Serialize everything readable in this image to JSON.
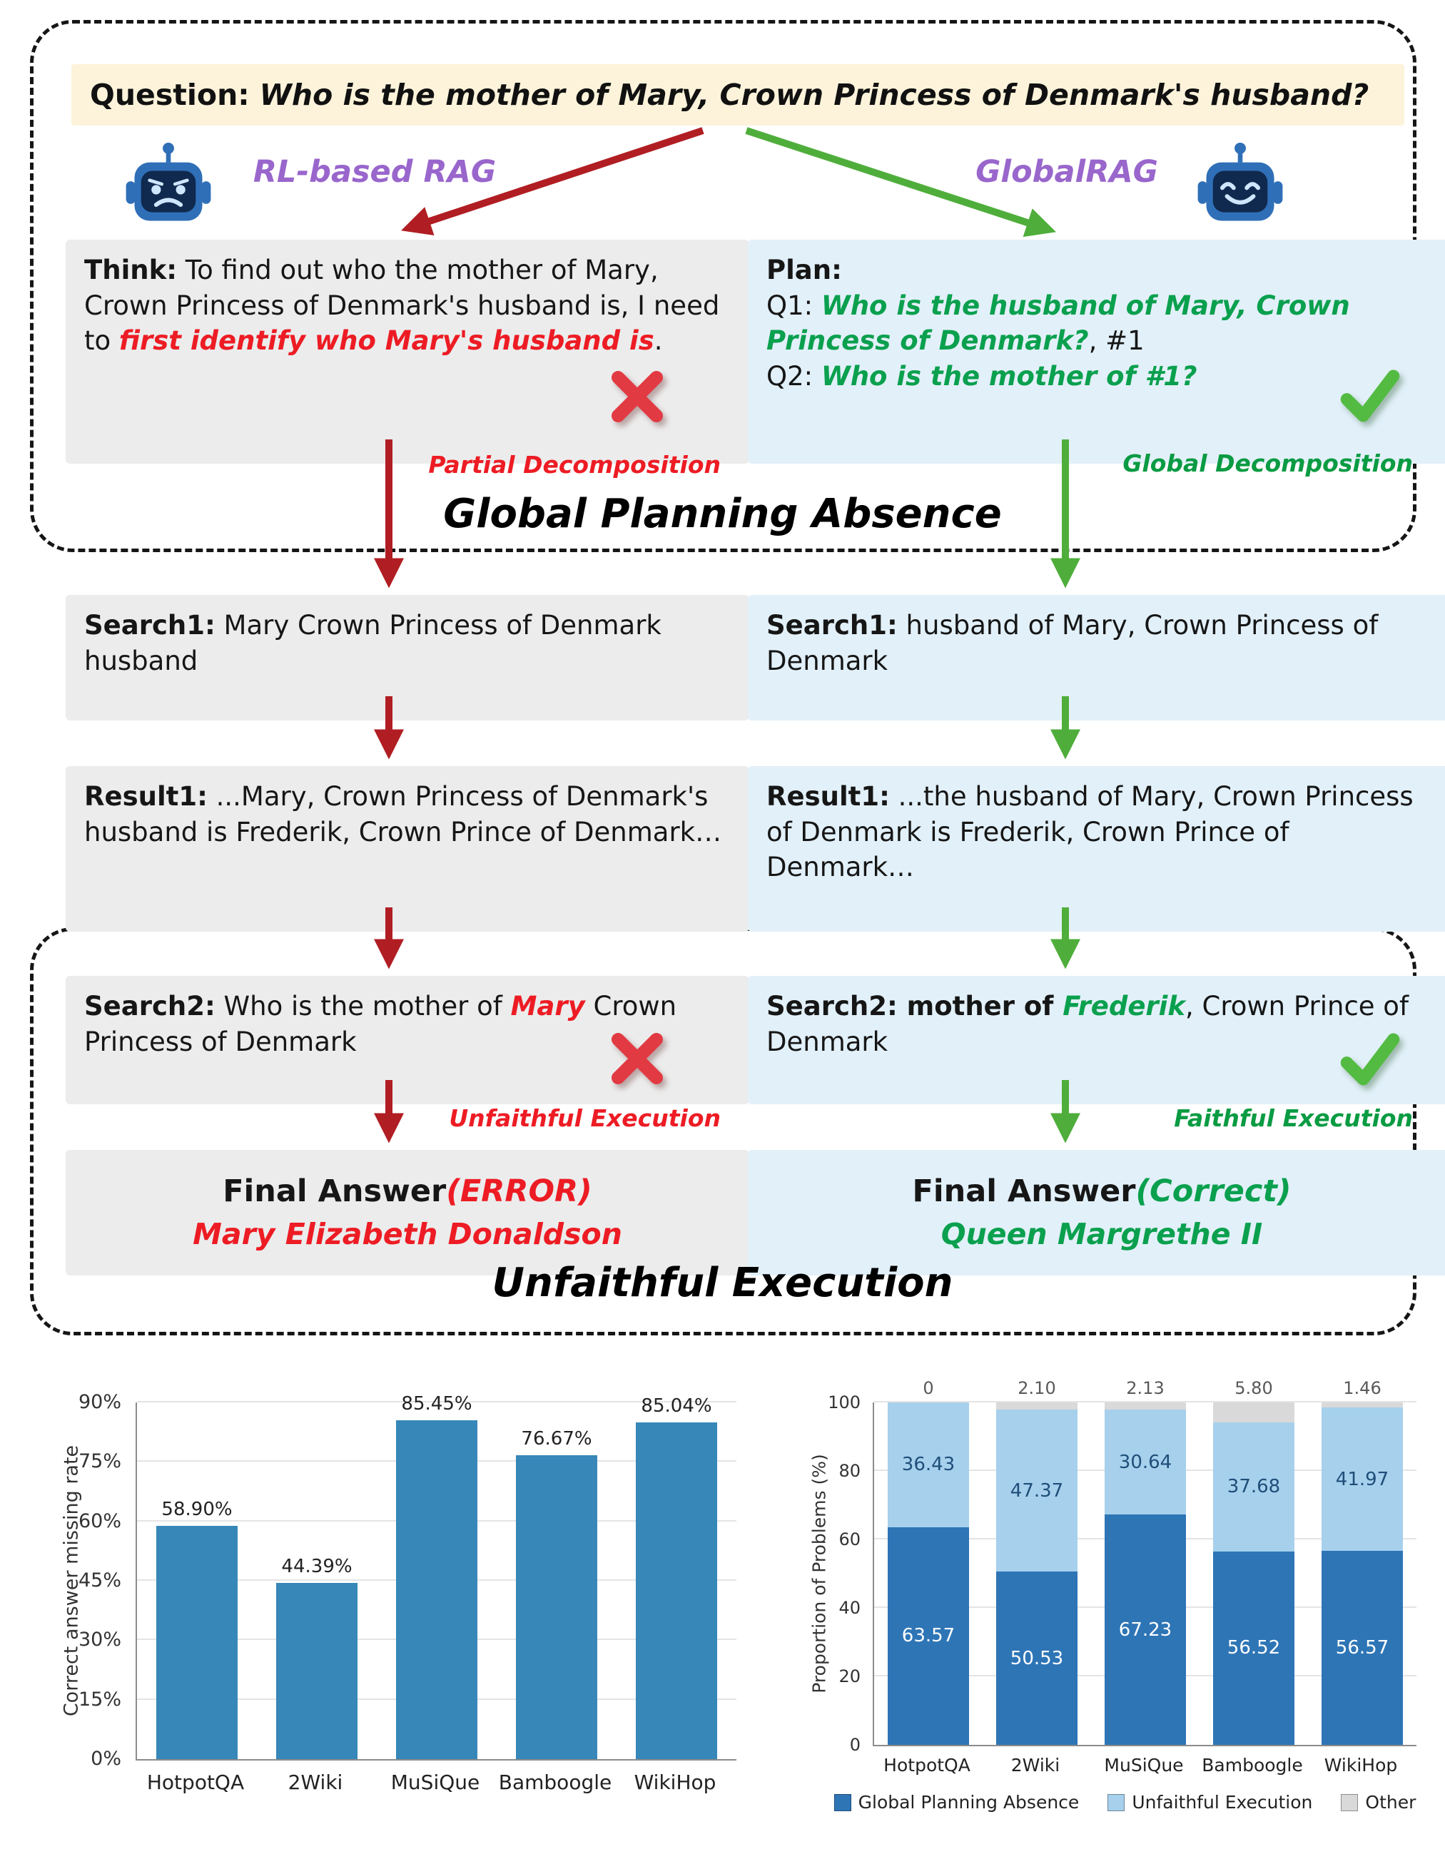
{
  "palette": {
    "red_text": "#ed1c24",
    "red_arrow": "#b01e23",
    "green_text": "#0aa04e",
    "green_arrow": "#4fae3b",
    "purple": "#9966cc",
    "cream_bar": "#fcf3da",
    "gray_box": "#ececec",
    "blue_box": "#e2f0f9"
  },
  "question": {
    "label": "Question:",
    "text": "Who is the mother of Mary, Crown Princess of Denmark's husband?"
  },
  "agents": {
    "left": {
      "name": "RL-based RAG",
      "think_label": "Think:",
      "think_before": "To find out who the mother of Mary, Crown Princess of Denmark's husband is, I need to ",
      "think_highlight": "first identify who Mary's husband is",
      "think_after": ".",
      "decomposition_caption": "Partial Decomposition",
      "search1_label": "Search1:",
      "search1_text": " Mary Crown Princess of Denmark husband",
      "result1_label": "Result1:",
      "result1_text": " ...Mary, Crown Princess of Denmark's husband is Frederik, Crown Prince of Denmark…",
      "search2_label": "Search2:",
      "search2_before": " Who is the mother of ",
      "search2_highlight": "Mary",
      "search2_after": " Crown Princess of Denmark",
      "execution_caption": "Unfaithful Execution",
      "final_label": "Final Answer",
      "final_status": "(ERROR)",
      "final_answer": "Mary Elizabeth Donaldson"
    },
    "right": {
      "name": "GlobalRAG",
      "plan_label": "Plan:",
      "q1_label": "Q1: ",
      "q1_text": "Who is the husband of Mary, Crown Princess of Denmark?",
      "q1_suffix": ", #1",
      "q2_label": "Q2: ",
      "q2_text": "Who is the mother of #1?",
      "decomposition_caption": "Global Decomposition",
      "search1_label": "Search1:",
      "search1_text": " husband of Mary, Crown Princess of Denmark",
      "result1_label": "Result1:",
      "result1_text": " ...the husband of Mary, Crown Princess of Denmark is Frederik, Crown Prince of Denmark…",
      "search2_label": "Search2:",
      "search2_bold": " mother of ",
      "search2_highlight": "Frederik",
      "search2_after": ", Crown Prince of Denmark",
      "execution_caption": "Faithful Execution",
      "final_label": "Final Answer",
      "final_status": "(Correct)",
      "final_answer": "Queen Margrethe II"
    }
  },
  "sections": {
    "top_title": "Global Planning Absence",
    "bottom_title": "Unfaithful Execution"
  },
  "chart_data": [
    {
      "type": "bar",
      "categories": [
        "HotpotQA",
        "2Wiki",
        "MuSiQue",
        "Bamboogle",
        "WikiHop"
      ],
      "values": [
        58.9,
        44.39,
        85.45,
        76.67,
        85.04
      ],
      "value_labels": [
        "58.90%",
        "44.39%",
        "85.45%",
        "76.67%",
        "85.04%"
      ],
      "xlabel": "",
      "ylabel": "Correct answer missing rate",
      "yticks": [
        "0%",
        "15%",
        "30%",
        "45%",
        "60%",
        "75%",
        "90%"
      ],
      "ylim": [
        0,
        90
      ],
      "bar_color": "#3787b8",
      "grid": true,
      "legend": "none"
    },
    {
      "type": "stacked-bar",
      "categories": [
        "HotpotQA",
        "2Wiki",
        "MuSiQue",
        "Bamboogle",
        "WikiHop"
      ],
      "series": [
        {
          "name": "Global Planning Absence",
          "color": "#2e75b6",
          "values": [
            63.57,
            50.53,
            67.23,
            56.52,
            56.57
          ],
          "labels": [
            "63.57",
            "50.53",
            "67.23",
            "56.52",
            "56.57"
          ],
          "label_color": "#ffffff"
        },
        {
          "name": "Unfaithful Execution",
          "color": "#a6d0ec",
          "values": [
            36.43,
            47.37,
            30.64,
            37.68,
            41.97
          ],
          "labels": [
            "36.43",
            "47.37",
            "30.64",
            "37.68",
            "41.97"
          ],
          "label_color": "#1f4e79"
        },
        {
          "name": "Other",
          "color": "#d9d9d9",
          "values": [
            0,
            2.1,
            2.13,
            5.8,
            1.46
          ],
          "labels": [
            "0",
            "2.10",
            "2.13",
            "5.80",
            "1.46"
          ],
          "label_color": "#595959"
        }
      ],
      "top_labels": [
        "0",
        "2.10",
        "2.13",
        "5.80",
        "1.46"
      ],
      "ylabel": "Proportion of Problems (%)",
      "yticks": [
        "0",
        "20",
        "40",
        "60",
        "80",
        "100"
      ],
      "ylim": [
        0,
        100
      ],
      "grid": true,
      "legend_position": "bottom"
    }
  ]
}
